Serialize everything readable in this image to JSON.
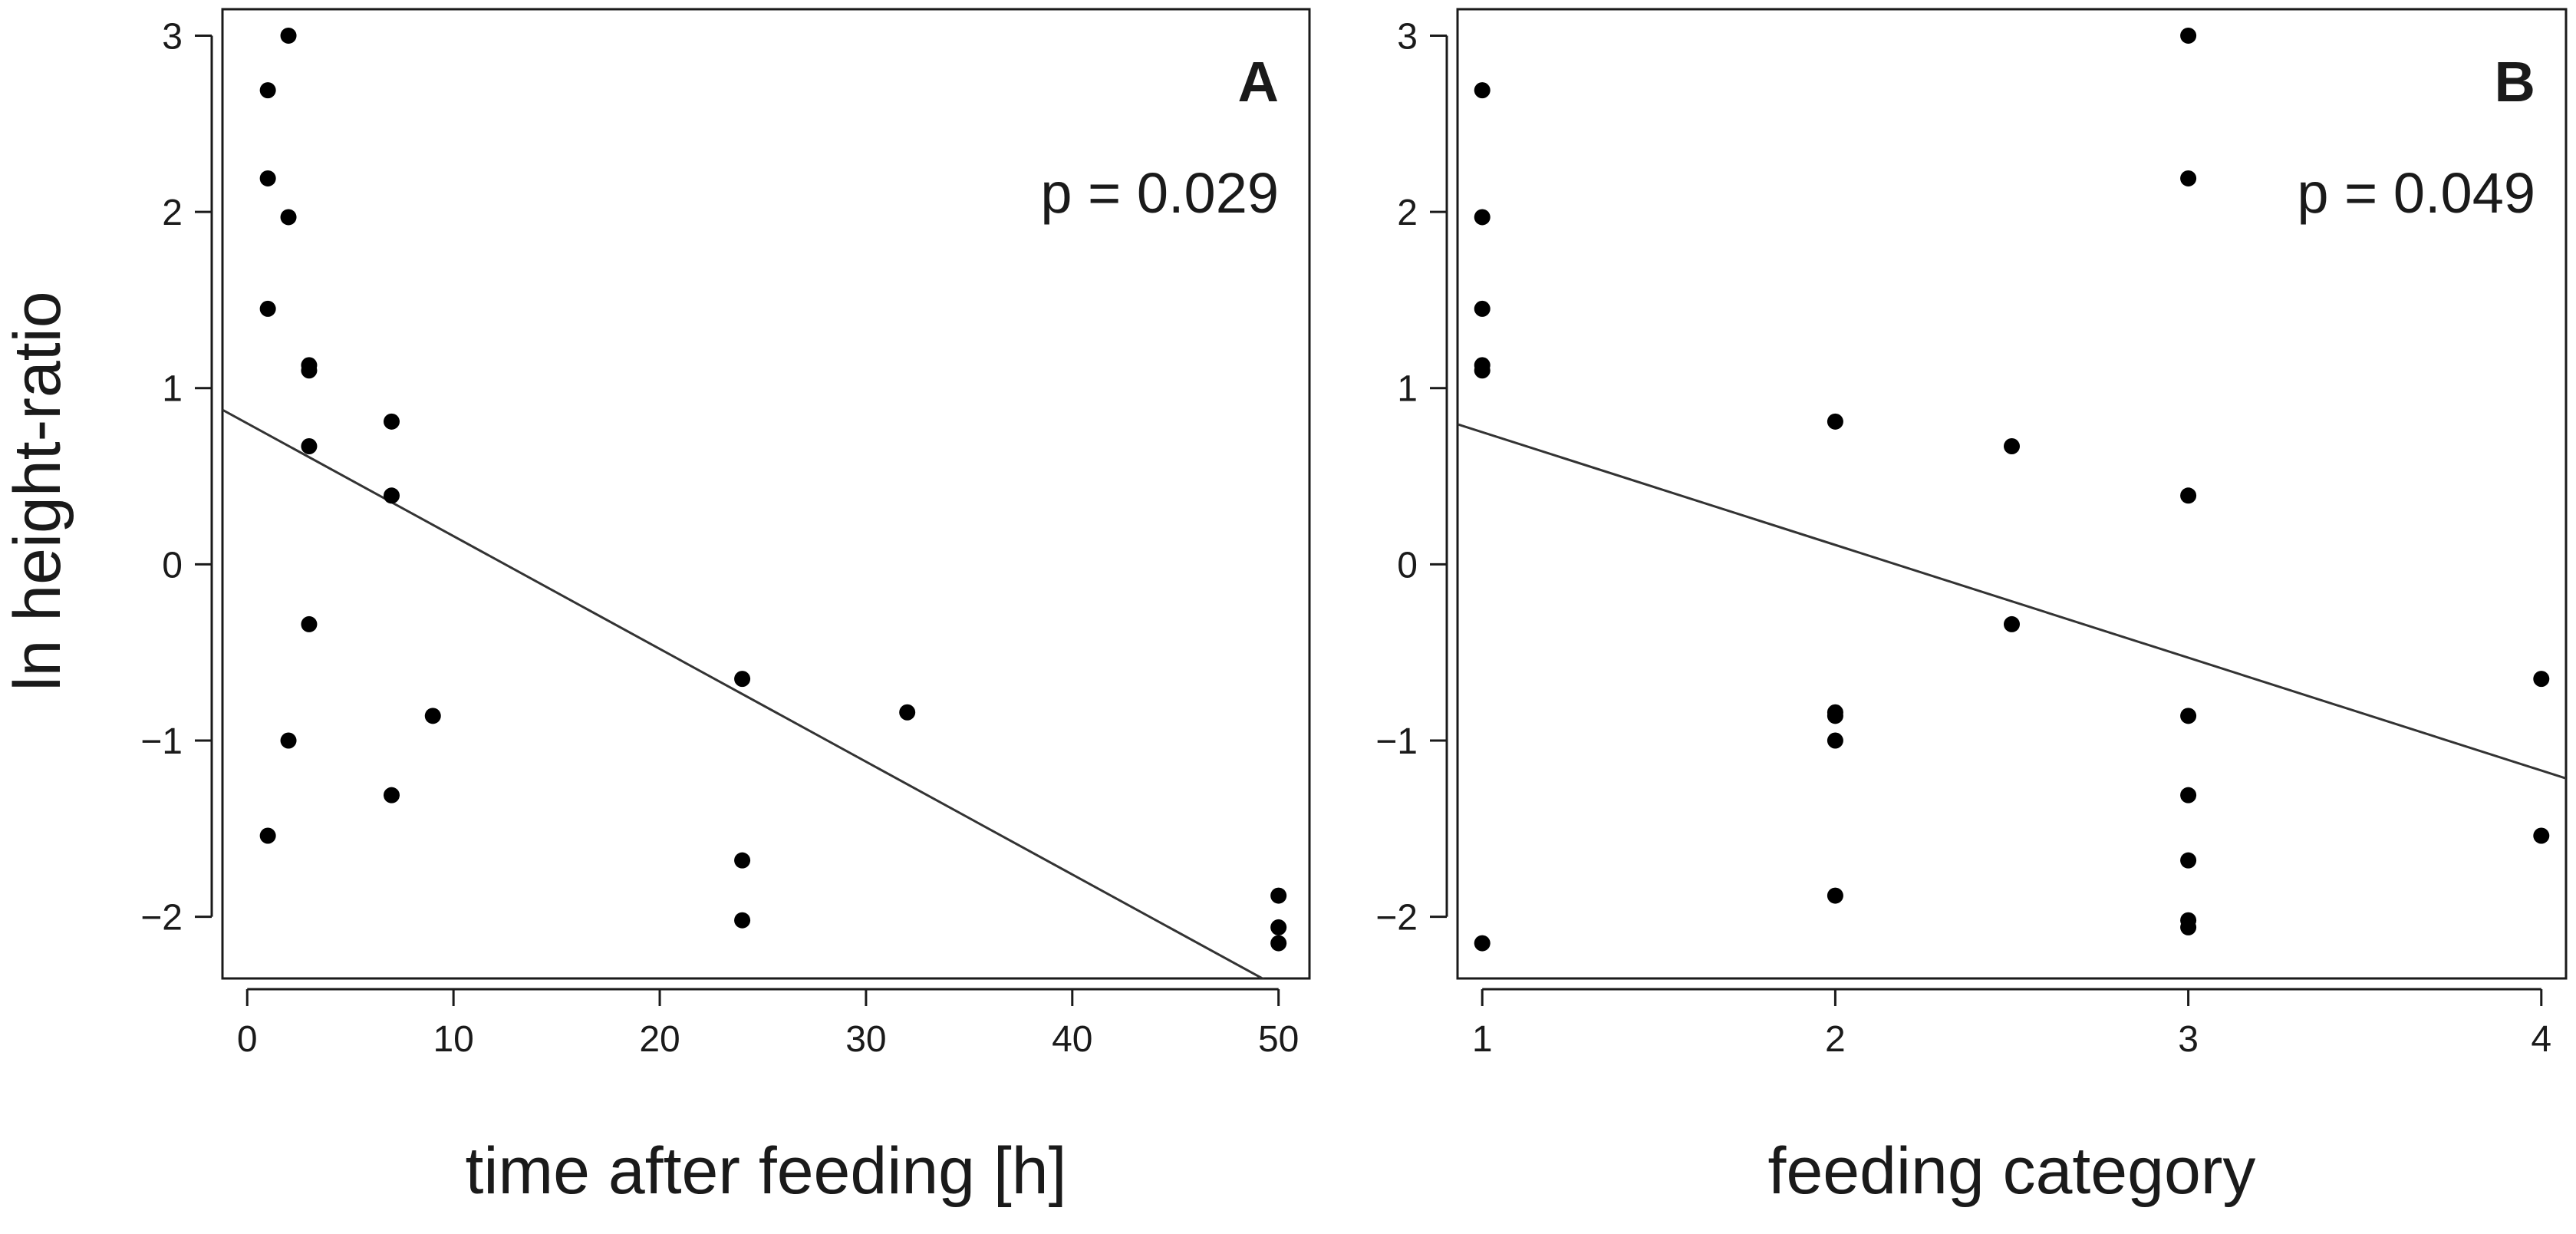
{
  "figure": {
    "ylabel": "ln height-ratio"
  },
  "colors": {
    "points": "#000000",
    "fit_line": "#333333",
    "axes": "#1a1a1a"
  },
  "chart_data": [
    {
      "type": "scatter",
      "panel": "A",
      "annotation": "p = 0.029",
      "xlabel": "time after feeding [h]",
      "ylabel": "ln height-ratio",
      "xlim": [
        -1.2,
        51.5
      ],
      "ylim": [
        -2.35,
        3.15
      ],
      "xticks": [
        0,
        10,
        20,
        30,
        40,
        50
      ],
      "yticks": [
        -2,
        -1,
        0,
        1,
        2,
        3
      ],
      "xtick_labels": [
        "0",
        "10",
        "20",
        "30",
        "40",
        "50"
      ],
      "ytick_labels": [
        "−2",
        "−1",
        "0",
        "1",
        "2",
        "3"
      ],
      "points": [
        {
          "x": 2,
          "y": 3.0
        },
        {
          "x": 1,
          "y": 2.69
        },
        {
          "x": 1,
          "y": 2.19
        },
        {
          "x": 2,
          "y": 1.97
        },
        {
          "x": 1,
          "y": 1.45
        },
        {
          "x": 3,
          "y": 1.13
        },
        {
          "x": 3,
          "y": 1.1
        },
        {
          "x": 7,
          "y": 0.81
        },
        {
          "x": 3,
          "y": 0.67
        },
        {
          "x": 7,
          "y": 0.39
        },
        {
          "x": 3,
          "y": -0.34
        },
        {
          "x": 24,
          "y": -0.65
        },
        {
          "x": 32,
          "y": -0.84
        },
        {
          "x": 9,
          "y": -0.86
        },
        {
          "x": 2,
          "y": -1.0
        },
        {
          "x": 7,
          "y": -1.31
        },
        {
          "x": 1,
          "y": -1.54
        },
        {
          "x": 24,
          "y": -1.68
        },
        {
          "x": 50,
          "y": -1.88
        },
        {
          "x": 24,
          "y": -2.02
        },
        {
          "x": 50,
          "y": -2.06
        },
        {
          "x": 50,
          "y": -2.15
        }
      ],
      "fit": {
        "intercept": 0.8,
        "slope": -0.064
      }
    },
    {
      "type": "scatter",
      "panel": "B",
      "annotation": "p = 0.049",
      "xlabel": "feeding category",
      "ylabel": "",
      "xlim": [
        0.93,
        4.07
      ],
      "ylim": [
        -2.35,
        3.15
      ],
      "xticks": [
        1,
        2,
        3,
        4
      ],
      "yticks": [
        -2,
        -1,
        0,
        1,
        2,
        3
      ],
      "xtick_labels": [
        "1",
        "2",
        "3",
        "4"
      ],
      "ytick_labels": [
        "−2",
        "−1",
        "0",
        "1",
        "2",
        "3"
      ],
      "points": [
        {
          "x": 1,
          "y": 2.69
        },
        {
          "x": 1,
          "y": 1.97
        },
        {
          "x": 1,
          "y": 1.45
        },
        {
          "x": 1,
          "y": 1.13
        },
        {
          "x": 1,
          "y": 1.1
        },
        {
          "x": 1,
          "y": -2.15
        },
        {
          "x": 2,
          "y": 0.81
        },
        {
          "x": 2,
          "y": -0.84
        },
        {
          "x": 2,
          "y": -0.86
        },
        {
          "x": 2,
          "y": -1.0
        },
        {
          "x": 2,
          "y": -1.88
        },
        {
          "x": 2.5,
          "y": 0.67
        },
        {
          "x": 2.5,
          "y": -0.34
        },
        {
          "x": 3,
          "y": 3.0
        },
        {
          "x": 3,
          "y": 2.19
        },
        {
          "x": 3,
          "y": 0.39
        },
        {
          "x": 3,
          "y": -0.86
        },
        {
          "x": 3,
          "y": -1.31
        },
        {
          "x": 3,
          "y": -1.68
        },
        {
          "x": 3,
          "y": -2.02
        },
        {
          "x": 3,
          "y": -2.06
        },
        {
          "x": 4,
          "y": -0.65
        },
        {
          "x": 4,
          "y": -1.54
        }
      ],
      "fit": {
        "intercept": 1.39,
        "slope": -0.64
      }
    }
  ]
}
